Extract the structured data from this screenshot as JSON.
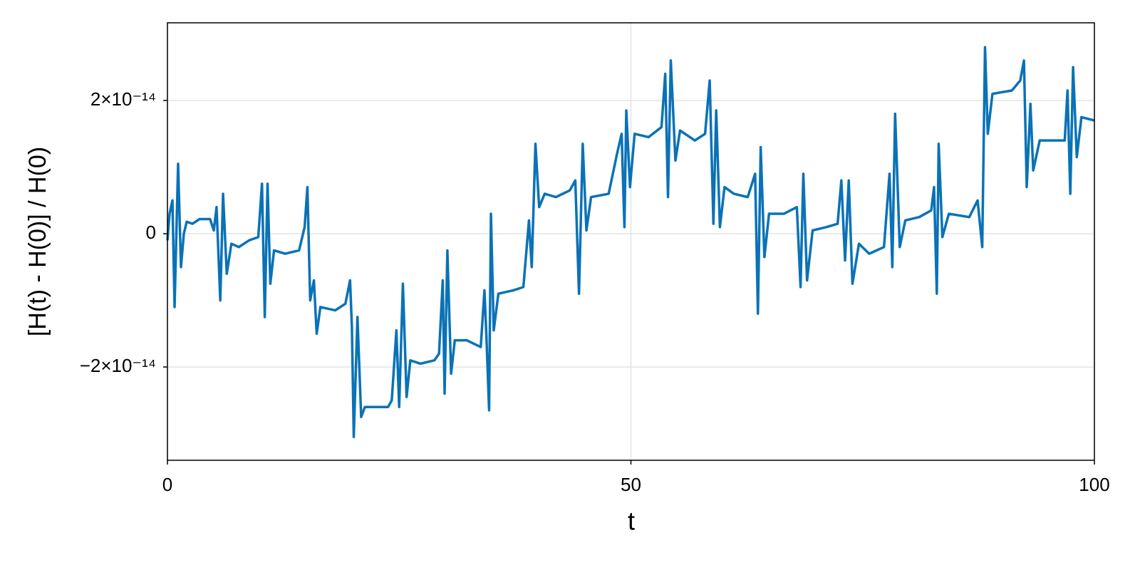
{
  "chart_data": {
    "type": "line",
    "xlabel": "t",
    "ylabel": "[H(t) - H(0)] / H(0)",
    "xlim": [
      0,
      100
    ],
    "xticks": [
      0,
      50,
      100
    ],
    "ylim": [
      -3.4e-14,
      3.166e-14
    ],
    "yticks": [
      {
        "value": -2e-14,
        "label": "−2×10⁻¹⁴"
      },
      0,
      {
        "value": 2e-14,
        "label": "2×10⁻¹⁴"
      }
    ],
    "grid": true,
    "series": [
      {
        "color": "#0a72b6",
        "x": [
          0,
          0.23,
          0.54,
          0.77,
          1.15,
          1.46,
          1.77,
          2.08,
          2.7,
          3.46,
          4.6,
          5.0,
          5.3,
          5.7,
          6.0,
          6.4,
          6.9,
          7.7,
          8.8,
          9.8,
          10.2,
          10.5,
          10.8,
          11.1,
          11.5,
          12.7,
          14.2,
          14.8,
          15.1,
          15.4,
          15.8,
          16.1,
          16.5,
          18.1,
          19.2,
          19.7,
          19.9,
          20.1,
          20.5,
          20.9,
          21.3,
          22.7,
          23.8,
          24.2,
          24.7,
          25.0,
          25.4,
          25.8,
          26.2,
          27.3,
          28.8,
          29.3,
          29.7,
          29.9,
          30.2,
          30.6,
          31.0,
          32.3,
          33.8,
          34.2,
          34.4,
          34.7,
          34.9,
          35.2,
          35.7,
          37.3,
          38.4,
          39.0,
          39.3,
          39.7,
          40.1,
          40.7,
          41.9,
          43.4,
          44.0,
          44.4,
          44.8,
          45.2,
          45.7,
          47.6,
          48.5,
          49.0,
          49.3,
          49.5,
          49.9,
          50.4,
          51.9,
          53.3,
          53.7,
          54.0,
          54.3,
          54.8,
          55.3,
          56.9,
          58.0,
          58.5,
          58.9,
          59.2,
          59.6,
          60.1,
          61.1,
          62.6,
          63.4,
          63.7,
          64.0,
          64.4,
          64.9,
          66.5,
          67.9,
          68.3,
          68.6,
          69.0,
          69.6,
          71.1,
          72.3,
          72.7,
          73.1,
          73.5,
          73.9,
          74.6,
          75.7,
          77.3,
          77.9,
          78.2,
          78.5,
          79.0,
          79.6,
          81.1,
          82.4,
          82.7,
          83.0,
          83.2,
          83.6,
          84.3,
          86.5,
          87.4,
          87.9,
          88.2,
          88.5,
          89.0,
          91.1,
          92.0,
          92.4,
          92.7,
          93.1,
          93.4,
          94.1,
          96.5,
          96.8,
          97.1,
          97.4,
          97.7,
          98.1,
          98.6,
          100
        ],
        "values": [
          -1e-15,
          3e-15,
          5e-15,
          -1.1e-14,
          1.05e-14,
          -5e-15,
          0,
          1.8e-15,
          1.5e-15,
          2.2e-15,
          2.2e-15,
          5e-16,
          4e-15,
          -1e-14,
          6e-15,
          -6e-15,
          -1.5e-15,
          -2e-15,
          -1e-15,
          -5e-16,
          7.5e-15,
          -1.25e-14,
          7.5e-15,
          -7.5e-15,
          -2.5e-15,
          -3e-15,
          -2.5e-15,
          1e-15,
          7e-15,
          -1e-14,
          -7e-15,
          -1.5e-14,
          -1.1e-14,
          -1.15e-14,
          -1.05e-14,
          -7e-15,
          -1.4e-14,
          -3.05e-14,
          -1.25e-14,
          -2.75e-14,
          -2.6e-14,
          -2.6e-14,
          -2.6e-14,
          -2.5e-14,
          -1.45e-14,
          -2.6e-14,
          -7.5e-15,
          -2.45e-14,
          -1.9e-14,
          -1.95e-14,
          -1.9e-14,
          -1.8e-14,
          -7e-15,
          -2.4e-14,
          -2.5e-15,
          -2.1e-14,
          -1.6e-14,
          -1.6e-14,
          -1.7e-14,
          -8.5e-15,
          -1.5e-14,
          -2.65e-14,
          3e-15,
          -1.45e-14,
          -9e-15,
          -8.5e-15,
          -8e-15,
          2e-15,
          -5e-15,
          1.35e-14,
          4e-15,
          6e-15,
          5.5e-15,
          6.5e-15,
          8e-15,
          -9e-15,
          1.35e-14,
          5e-16,
          5.5e-15,
          6e-15,
          1.2e-14,
          1.5e-14,
          1e-15,
          1.85e-14,
          7e-15,
          1.5e-14,
          1.45e-14,
          1.6e-14,
          2.4e-14,
          5.5e-15,
          2.6e-14,
          1.1e-14,
          1.55e-14,
          1.4e-14,
          1.5e-14,
          2.3e-14,
          1.5e-15,
          1.85e-14,
          1e-15,
          7e-15,
          6e-15,
          5.5e-15,
          9e-15,
          -1.2e-14,
          1.3e-14,
          -3.5e-15,
          3e-15,
          3e-15,
          4e-15,
          -8e-15,
          9e-15,
          -7e-15,
          5e-16,
          1e-15,
          1.5e-15,
          8e-15,
          -4e-15,
          8e-15,
          -7.5e-15,
          -1.5e-15,
          -3e-15,
          -2e-15,
          9e-15,
          -5e-15,
          1.8e-14,
          -2e-15,
          2e-15,
          2.5e-15,
          3.5e-15,
          7e-15,
          -9e-15,
          1.35e-14,
          -5e-16,
          3e-15,
          2.5e-15,
          5e-15,
          -2e-15,
          2.8e-14,
          1.5e-14,
          2.1e-14,
          2.15e-14,
          2.3e-14,
          2.6e-14,
          7e-15,
          1.95e-14,
          9.5e-15,
          1.4e-14,
          1.4e-14,
          1.4e-14,
          2.15e-14,
          6e-15,
          2.5e-14,
          1.15e-14,
          1.75e-14,
          1.7e-14
        ]
      }
    ]
  }
}
